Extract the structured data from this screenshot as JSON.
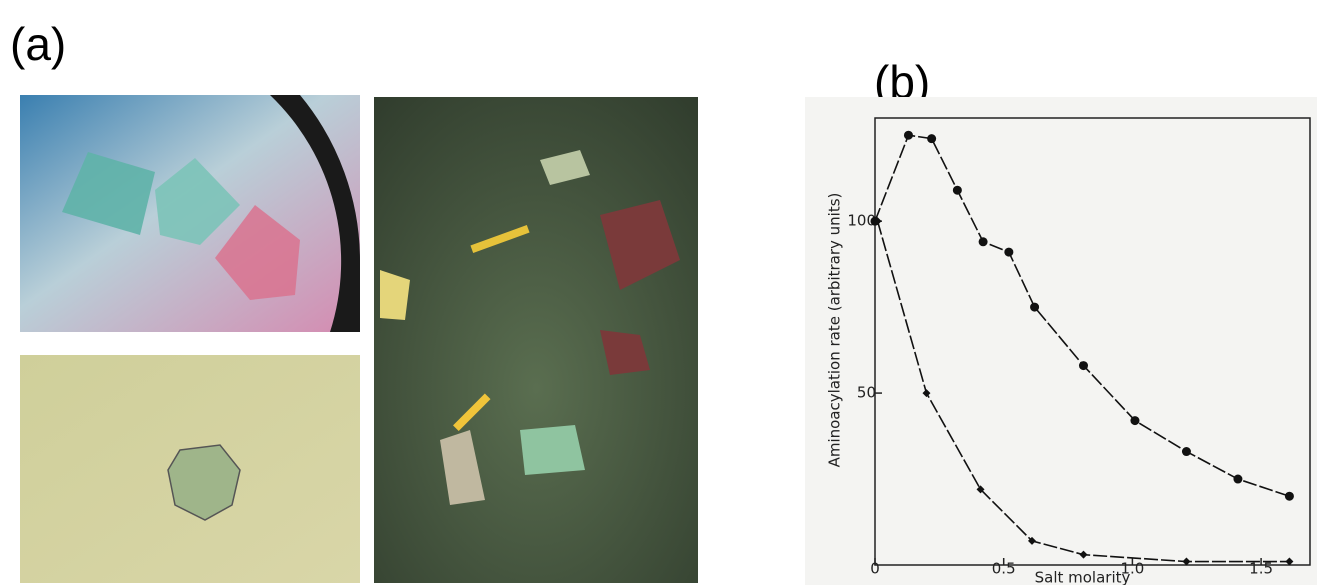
{
  "panels": {
    "a": "(a)",
    "b": "(b)"
  },
  "chart_data": {
    "type": "scatter",
    "x_label": "Salt molarity",
    "y_label": "Aminoacylation rate (arbitrary units)",
    "xlim": [
      0,
      1.69
    ],
    "ylim": [
      0,
      130
    ],
    "xticks": [
      0,
      0.5,
      {
        "value": 1,
        "label": "1.0"
      },
      1.5
    ],
    "yticks": [
      50,
      100
    ],
    "series": [
      {
        "marker": "circle",
        "color": "#111111",
        "x": [
          0,
          0.13,
          0.22,
          0.32,
          0.42,
          0.52,
          0.62,
          0.81,
          1.01,
          1.21,
          1.41,
          1.61
        ],
        "values": [
          100,
          125,
          124,
          109,
          94,
          91,
          75,
          58,
          42,
          33,
          25,
          20
        ]
      },
      {
        "marker": "diamond",
        "color": "#111111",
        "x": [
          0.01,
          0.2,
          0.41,
          0.61,
          0.81,
          1.21,
          1.61
        ],
        "values": [
          100,
          50,
          22,
          7,
          3,
          1,
          1
        ]
      }
    ]
  }
}
